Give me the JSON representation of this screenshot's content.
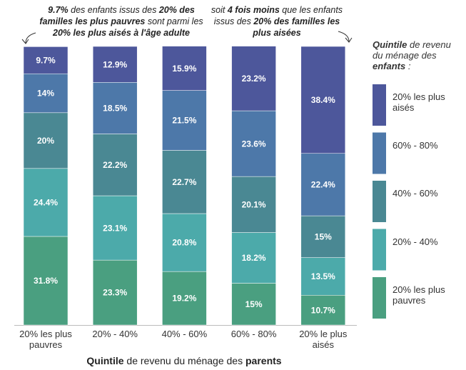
{
  "chart_data": {
    "type": "stacked_bar",
    "annotations": [
      {
        "segments": [
          {
            "text": "9.7%",
            "bold": true
          },
          {
            "text": " des enfants issus des ",
            "bold": false
          },
          {
            "text": "20% des familles les plus pauvres",
            "bold": true
          },
          {
            "text": " sont parmi les ",
            "bold": false
          },
          {
            "text": "20% les plus aisés à l'âge adulte",
            "bold": true
          }
        ]
      },
      {
        "segments": [
          {
            "text": "soit ",
            "bold": false
          },
          {
            "text": "4 fois moins",
            "bold": true
          },
          {
            "text": " que les enfants issus des ",
            "bold": false
          },
          {
            "text": "20% des familles les plus aisées",
            "bold": true
          }
        ]
      }
    ],
    "legend_title": [
      {
        "text": "Quintile",
        "bold": true
      },
      {
        "text": " de revenu du ménage des ",
        "bold": false
      },
      {
        "text": "enfants",
        "bold": true
      },
      {
        "text": " :",
        "bold": false
      }
    ],
    "x_label": [
      {
        "text": "Quintile",
        "bold": true
      },
      {
        "text": " de revenu du ménage des ",
        "bold": false
      },
      {
        "text": "parents",
        "bold": true
      }
    ],
    "categories": [
      "20% les plus pauvres",
      "20% - 40%",
      "40% - 60%",
      "60% - 80%",
      "20% le plus aisés"
    ],
    "ylim": [
      0,
      100
    ],
    "series": [
      {
        "name": "20% les plus pauvres",
        "color": "#4a9f80",
        "values": [
          31.8,
          23.3,
          19.2,
          15,
          10.7
        ],
        "value_labels": [
          "31.8%",
          "23.3%",
          "19.2%",
          "15%",
          "10.7%"
        ]
      },
      {
        "name": "20% - 40%",
        "color": "#4caaaa",
        "values": [
          24.4,
          23.1,
          20.8,
          18.2,
          13.5
        ],
        "value_labels": [
          "24.4%",
          "23.1%",
          "20.8%",
          "18.2%",
          "13.5%"
        ]
      },
      {
        "name": "40% - 60%",
        "color": "#4a8893",
        "values": [
          20,
          22.2,
          22.7,
          20.1,
          15
        ],
        "value_labels": [
          "20%",
          "22.2%",
          "22.7%",
          "20.1%",
          "15%"
        ]
      },
      {
        "name": "60% - 80%",
        "color": "#4d78a9",
        "values": [
          14,
          18.5,
          21.5,
          23.6,
          22.4
        ],
        "value_labels": [
          "14%",
          "18.5%",
          "21.5%",
          "23.6%",
          "22.4%"
        ]
      },
      {
        "name": "20% les plus aisés",
        "color": "#4d579b",
        "values": [
          9.7,
          12.9,
          15.9,
          23.2,
          38.4
        ],
        "value_labels": [
          "9.7%",
          "12.9%",
          "15.9%",
          "23.2%",
          "38.4%"
        ]
      }
    ]
  }
}
